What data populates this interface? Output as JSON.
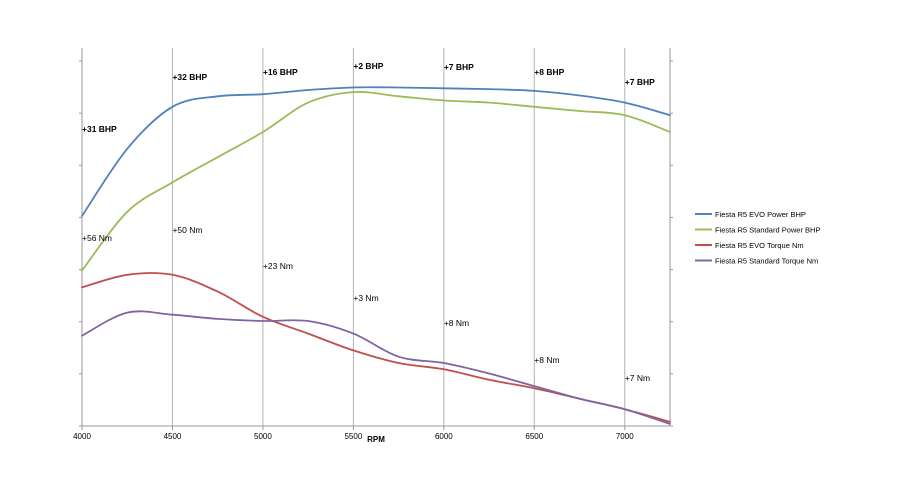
{
  "chart_data": {
    "type": "line",
    "xlabel": "RPM",
    "ylabel": "",
    "x_ticks": [
      4000,
      4500,
      5000,
      5500,
      6000,
      6500,
      7000
    ],
    "xlim": [
      4000,
      7250
    ],
    "grid": "vertical",
    "legend_position": "right",
    "series": [
      {
        "name": "Fiesta R5 EVO Power BHP",
        "color": "#4f81bd",
        "x": [
          4000,
          4250,
          4500,
          4750,
          5000,
          5250,
          5500,
          5750,
          6000,
          6250,
          6500,
          6750,
          7000,
          7250
        ],
        "y": [
          5.0,
          6.6,
          7.6,
          7.85,
          7.9,
          8.0,
          8.06,
          8.06,
          8.04,
          8.02,
          7.98,
          7.87,
          7.7,
          7.4
        ]
      },
      {
        "name": "Fiesta R5 Standard Power BHP",
        "color": "#9bbb59",
        "x": [
          4000,
          4250,
          4500,
          4750,
          5000,
          5250,
          5500,
          5750,
          6000,
          6250,
          6500,
          6750,
          7000,
          7250
        ],
        "y": [
          3.7,
          5.1,
          5.8,
          6.4,
          7.0,
          7.7,
          7.95,
          7.85,
          7.75,
          7.7,
          7.6,
          7.5,
          7.4,
          7.0
        ]
      },
      {
        "name": "Fiesta R5 EVO Torque Nm",
        "color": "#c0504d",
        "x": [
          4000,
          4250,
          4500,
          4750,
          5000,
          5250,
          5500,
          5750,
          6000,
          6250,
          6500,
          6750,
          7000,
          7250
        ],
        "y": [
          3.3,
          3.6,
          3.6,
          3.2,
          2.6,
          2.2,
          1.8,
          1.5,
          1.35,
          1.1,
          0.9,
          0.65,
          0.4,
          0.1
        ]
      },
      {
        "name": "Fiesta R5 Standard Torque Nm",
        "color": "#8064a2",
        "x": [
          4000,
          4250,
          4500,
          4750,
          5000,
          5250,
          5500,
          5750,
          6000,
          6250,
          6500,
          6750,
          7000,
          7250
        ],
        "y": [
          2.15,
          2.7,
          2.65,
          2.55,
          2.5,
          2.5,
          2.2,
          1.65,
          1.5,
          1.25,
          0.95,
          0.65,
          0.4,
          0.05
        ]
      }
    ],
    "annotations": [
      {
        "text": "+31 BHP",
        "x": 4000,
        "y": 6.2,
        "style": "bold"
      },
      {
        "text": "+32 BHP",
        "x": 4000,
        "y": 6.2,
        "style": "bold"
      },
      {
        "text": "+16 BHP",
        "x": 5000,
        "y": 8.1,
        "style": "bold"
      },
      {
        "text": "+2 BHP",
        "x": 5500,
        "y": 8.2,
        "style": "bold"
      },
      {
        "text": "+7 BHP",
        "x": 6000,
        "y": 8.2,
        "style": "bold"
      },
      {
        "text": "+8 BHP",
        "x": 6500,
        "y": 8.1,
        "style": "bold"
      },
      {
        "text": "+7 BHP",
        "x": 7000,
        "y": 7.9,
        "style": "bold"
      },
      {
        "text": "+56 Nm",
        "x": 4000,
        "y": 3.5,
        "style": "normal"
      },
      {
        "text": "+50 Nm",
        "x": 4500,
        "y": 3.7,
        "style": "normal"
      },
      {
        "text": "+23 Nm",
        "x": 5000,
        "y": 2.9,
        "style": "normal"
      },
      {
        "text": "+3 Nm",
        "x": 5500,
        "y": 2.35,
        "style": "normal"
      },
      {
        "text": "+8 Nm",
        "x": 6000,
        "y": 1.9,
        "style": "normal"
      },
      {
        "text": "+8 Nm",
        "x": 6500,
        "y": 1.2,
        "style": "normal"
      },
      {
        "text": "+7 Nm",
        "x": 7000,
        "y": 0.8,
        "style": "normal"
      }
    ]
  }
}
